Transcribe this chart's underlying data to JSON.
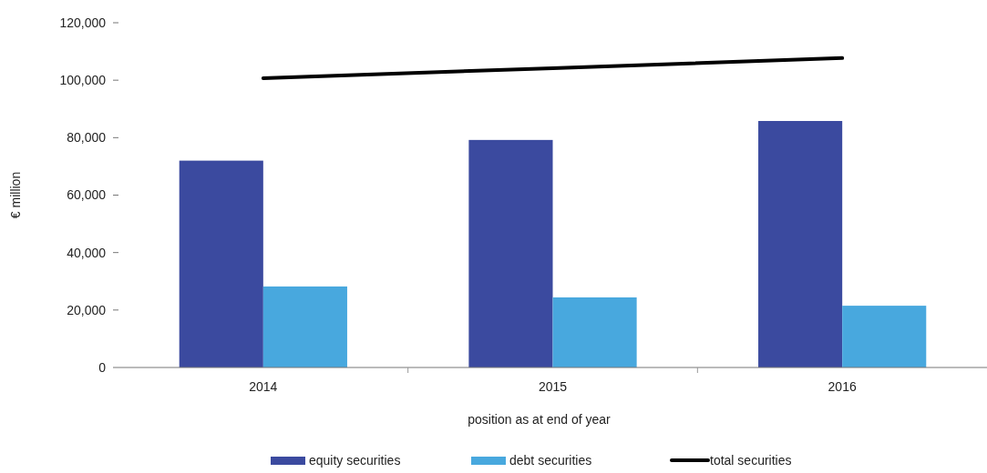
{
  "chart_data": {
    "type": "bar",
    "categories": [
      "2014",
      "2015",
      "2016"
    ],
    "series": [
      {
        "name": "equity securities",
        "color": "#3b4a9f",
        "values": [
          72000,
          79200,
          85800
        ]
      },
      {
        "name": "debt securities",
        "color": "#48a8de",
        "values": [
          28200,
          24400,
          21500
        ]
      },
      {
        "name": "total securities",
        "type": "line",
        "color": "#000000",
        "values": [
          100700,
          104200,
          107700
        ]
      }
    ],
    "ylim": [
      0,
      120000
    ],
    "yticks": [
      {
        "value": 0,
        "label": "0"
      },
      {
        "value": 20000,
        "label": "20,000"
      },
      {
        "value": 40000,
        "label": "40,000"
      },
      {
        "value": 60000,
        "label": "60,000"
      },
      {
        "value": 80000,
        "label": "80,000"
      },
      {
        "value": 100000,
        "label": "100,000"
      },
      {
        "value": 120000,
        "label": "120,000"
      }
    ],
    "xlabel": "position as at end of year",
    "ylabel": "€ million",
    "grid": false,
    "legend": "bottom"
  }
}
